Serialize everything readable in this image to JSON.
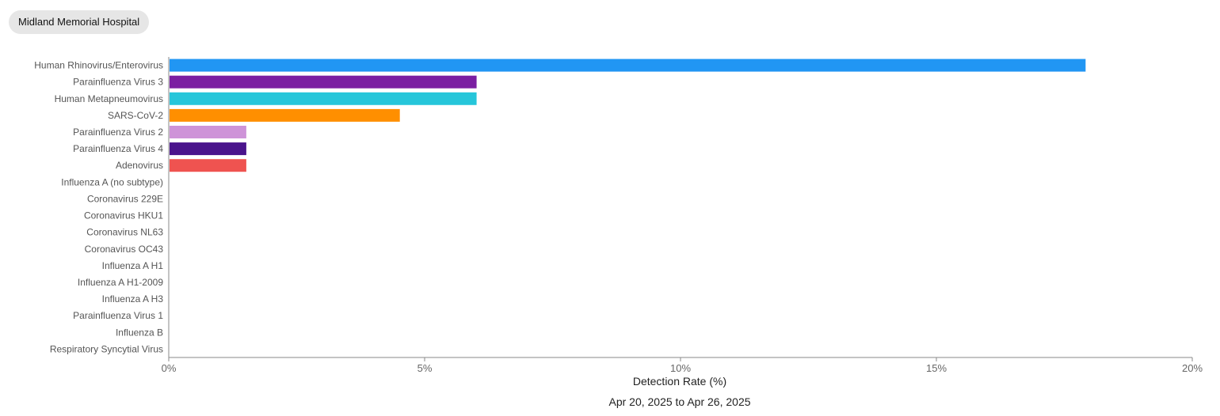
{
  "header": {
    "hospital": "Midland Memorial Hospital"
  },
  "chart_data": {
    "type": "bar",
    "orientation": "horizontal",
    "categories": [
      "Human Rhinovirus/Enterovirus",
      "Parainfluenza Virus 3",
      "Human Metapneumovirus",
      "SARS-CoV-2",
      "Parainfluenza Virus 2",
      "Parainfluenza Virus 4",
      "Adenovirus",
      "Influenza A (no subtype)",
      "Coronavirus 229E",
      "Coronavirus HKU1",
      "Coronavirus NL63",
      "Coronavirus OC43",
      "Influenza A H1",
      "Influenza A H1-2009",
      "Influenza A H3",
      "Parainfluenza Virus 1",
      "Influenza B",
      "Respiratory Syncytial Virus"
    ],
    "values": [
      17.9,
      6.0,
      6.0,
      4.5,
      1.5,
      1.5,
      1.5,
      0,
      0,
      0,
      0,
      0,
      0,
      0,
      0,
      0,
      0,
      0
    ],
    "colors": [
      "#2196f3",
      "#7b1fa2",
      "#26c6da",
      "#ff8f00",
      "#ce93d8",
      "#4a148c",
      "#ef5350",
      "#999999",
      "#999999",
      "#999999",
      "#999999",
      "#999999",
      "#999999",
      "#999999",
      "#999999",
      "#999999",
      "#999999",
      "#999999"
    ],
    "xlim": [
      0,
      20
    ],
    "xticks": [
      "0%",
      "5%",
      "10%",
      "15%",
      "20%"
    ],
    "xlabel": "Detection Rate (%)",
    "date_range": "Apr 20, 2025 to Apr 26, 2025",
    "grid": false,
    "legend": "none"
  }
}
